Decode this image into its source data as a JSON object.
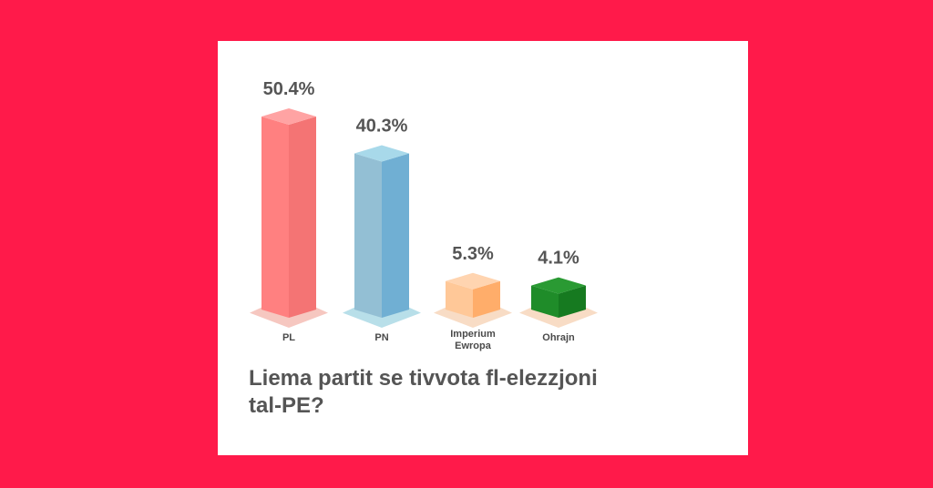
{
  "question": "Liema partit se tivvota fl-elezzjoni tal-PE?",
  "chart_data": {
    "type": "bar",
    "title": "Liema partit se tivvota fl-elezzjoni tal-PE?",
    "categories": [
      "PL",
      "PN",
      "Imperium Ewropa",
      "Ohrajn"
    ],
    "category_lines": [
      [
        "PL"
      ],
      [
        "PN"
      ],
      [
        "Imperium",
        "Ewropa"
      ],
      [
        "Ohrajn"
      ]
    ],
    "values": [
      50.4,
      40.3,
      5.3,
      4.1
    ],
    "value_labels": [
      "50.4%",
      "40.3%",
      "5.3%",
      "4.1%"
    ],
    "colors": [
      {
        "front": "#ff8080",
        "side": "#f47474",
        "top": "#ffa3a3",
        "shadow": "#f6c7c0"
      },
      {
        "front": "#93bfd4",
        "side": "#70afd3",
        "top": "#a8d9ea",
        "shadow": "#b8dfe9"
      },
      {
        "front": "#ffc898",
        "side": "#ffad6a",
        "top": "#ffd4b0",
        "shadow": "#f8dcc5"
      },
      {
        "front": "#1f8c29",
        "side": "#167a20",
        "top": "#2a9a33",
        "shadow": "#f8dcc5"
      }
    ],
    "ylim": [
      0,
      50.4
    ],
    "grid": false,
    "legend": "none"
  }
}
